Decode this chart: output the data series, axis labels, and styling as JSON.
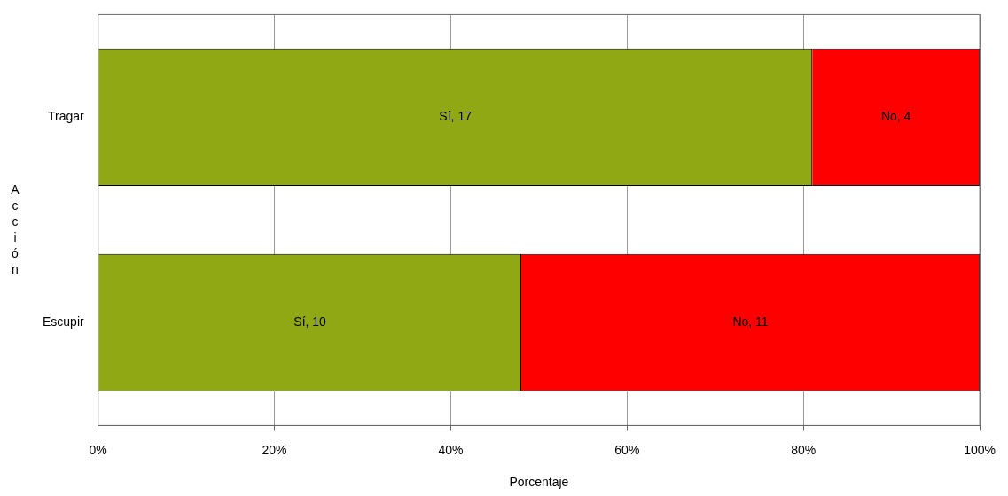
{
  "chart_data": {
    "type": "bar",
    "orientation": "horizontal",
    "stacked": true,
    "xlabel": "Porcentaje",
    "ylabel": "Acción",
    "categories": [
      "Tragar",
      "Escupir"
    ],
    "series": [
      {
        "color": "#8fa813",
        "values": [
          81,
          48
        ]
      },
      {
        "color": "#ff0000",
        "values": [
          19,
          52
        ]
      }
    ],
    "annotations": [
      "Sí, 17",
      "No, 4",
      "Sí, 10",
      "No, 11"
    ],
    "xlim": [
      0,
      100
    ],
    "xticks": [
      {
        "value": 0,
        "label": "0%"
      },
      {
        "value": 20,
        "label": "20%"
      },
      {
        "value": 40,
        "label": "40%"
      },
      {
        "value": 60,
        "label": "60%"
      },
      {
        "value": 80,
        "label": "80%"
      },
      {
        "value": 100,
        "label": "100%"
      }
    ],
    "grid": "x",
    "legend": false
  }
}
